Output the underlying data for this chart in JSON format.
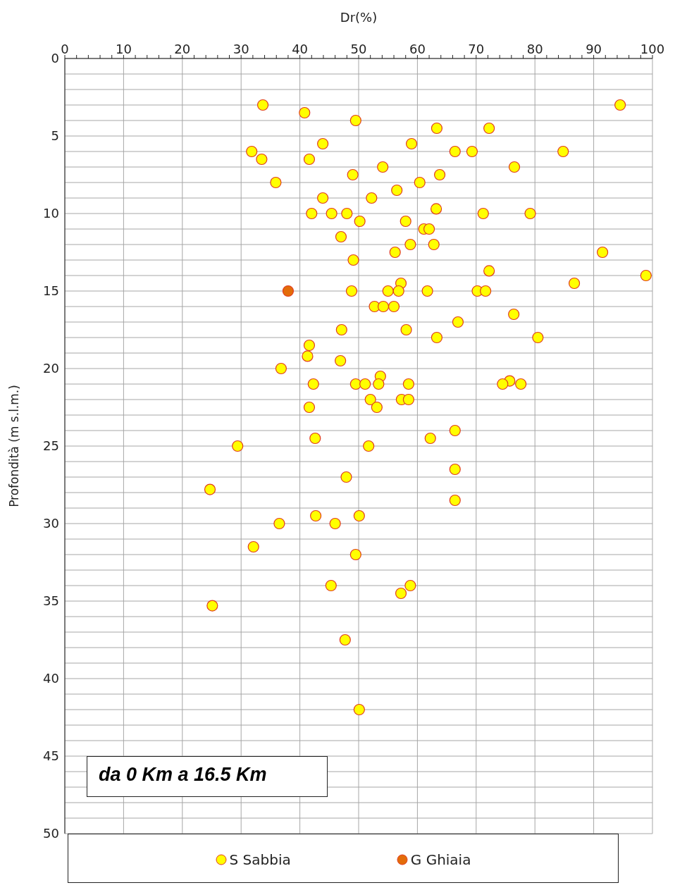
{
  "chart_data": {
    "type": "scatter",
    "xlabel": "Dr(%)",
    "ylabel": "Profondità (m s.l.m.)",
    "xlim": [
      0,
      100
    ],
    "ylim": [
      50,
      0
    ],
    "xticks": [
      0,
      {
        "value": 2,
        "label": null
      },
      {
        "value": 4,
        "label": null
      },
      {
        "value": 6,
        "label": null
      },
      {
        "value": 8,
        "label": null
      },
      10,
      {
        "value": 12,
        "label": null
      },
      {
        "value": 14,
        "label": null
      },
      {
        "value": 16,
        "label": null
      },
      {
        "value": 18,
        "label": null
      },
      20,
      {
        "value": 22,
        "label": null
      },
      {
        "value": 24,
        "label": null
      },
      {
        "value": 26,
        "label": null
      },
      {
        "value": 28,
        "label": null
      },
      30,
      {
        "value": 32,
        "label": null
      },
      {
        "value": 34,
        "label": null
      },
      {
        "value": 36,
        "label": null
      },
      {
        "value": 38,
        "label": null
      },
      40,
      {
        "value": 42,
        "label": null
      },
      {
        "value": 44,
        "label": null
      },
      {
        "value": 46,
        "label": null
      },
      {
        "value": 48,
        "label": null
      },
      50,
      {
        "value": 52,
        "label": null
      },
      {
        "value": 54,
        "label": null
      },
      {
        "value": 56,
        "label": null
      },
      {
        "value": 58,
        "label": null
      },
      60,
      {
        "value": 62,
        "label": null
      },
      {
        "value": 64,
        "label": null
      },
      {
        "value": 66,
        "label": null
      },
      {
        "value": 68,
        "label": null
      },
      70,
      {
        "value": 72,
        "label": null
      },
      {
        "value": 74,
        "label": null
      },
      {
        "value": 76,
        "label": null
      },
      {
        "value": 78,
        "label": null
      },
      80,
      {
        "value": 82,
        "label": null
      },
      {
        "value": 84,
        "label": null
      },
      {
        "value": 86,
        "label": null
      },
      {
        "value": 88,
        "label": null
      },
      90,
      {
        "value": 92,
        "label": null
      },
      {
        "value": 94,
        "label": null
      },
      {
        "value": 96,
        "label": null
      },
      {
        "value": 98,
        "label": null
      },
      100
    ],
    "yticks": [
      0,
      {
        "value": 1,
        "label": null
      },
      {
        "value": 2,
        "label": null
      },
      {
        "value": 3,
        "label": null
      },
      {
        "value": 4,
        "label": null
      },
      5,
      {
        "value": 6,
        "label": null
      },
      {
        "value": 7,
        "label": null
      },
      {
        "value": 8,
        "label": null
      },
      {
        "value": 9,
        "label": null
      },
      10,
      {
        "value": 11,
        "label": null
      },
      {
        "value": 12,
        "label": null
      },
      {
        "value": 13,
        "label": null
      },
      {
        "value": 14,
        "label": null
      },
      15,
      {
        "value": 16,
        "label": null
      },
      {
        "value": 17,
        "label": null
      },
      {
        "value": 18,
        "label": null
      },
      {
        "value": 19,
        "label": null
      },
      20,
      {
        "value": 21,
        "label": null
      },
      {
        "value": 22,
        "label": null
      },
      {
        "value": 23,
        "label": null
      },
      {
        "value": 24,
        "label": null
      },
      25,
      {
        "value": 26,
        "label": null
      },
      {
        "value": 27,
        "label": null
      },
      {
        "value": 28,
        "label": null
      },
      {
        "value": 29,
        "label": null
      },
      30,
      {
        "value": 31,
        "label": null
      },
      {
        "value": 32,
        "label": null
      },
      {
        "value": 33,
        "label": null
      },
      {
        "value": 34,
        "label": null
      },
      35,
      {
        "value": 36,
        "label": null
      },
      {
        "value": 37,
        "label": null
      },
      {
        "value": 38,
        "label": null
      },
      {
        "value": 39,
        "label": null
      },
      40,
      {
        "value": 41,
        "label": null
      },
      {
        "value": 42,
        "label": null
      },
      {
        "value": 43,
        "label": null
      },
      {
        "value": 44,
        "label": null
      },
      45,
      {
        "value": 46,
        "label": null
      },
      {
        "value": 47,
        "label": null
      },
      {
        "value": 48,
        "label": null
      },
      {
        "value": 49,
        "label": null
      },
      50
    ],
    "grid": true,
    "legend": "bottom",
    "marker": "circle",
    "annotations": [
      "da 0 Km a 16.5 Km"
    ],
    "series": [
      {
        "name": "S Sabbia",
        "color": "#ffff00",
        "x": [
          33.7,
          40.8,
          49.5,
          94.5,
          63.3,
          72.2,
          59.0,
          43.9,
          31.8,
          66.4,
          69.3,
          84.8,
          33.5,
          41.6,
          54.1,
          76.5,
          49.0,
          63.8,
          35.9,
          60.4,
          56.5,
          43.9,
          52.2,
          63.2,
          42.0,
          45.4,
          48.0,
          71.2,
          79.2,
          50.2,
          58.0,
          61.1,
          62.0,
          47.0,
          58.8,
          62.8,
          56.2,
          91.5,
          49.1,
          72.2,
          98.9,
          57.2,
          86.7,
          48.8,
          55.0,
          56.8,
          61.7,
          70.2,
          71.6,
          52.7,
          54.2,
          56.0,
          76.4,
          66.9,
          47.1,
          58.1,
          63.3,
          80.5,
          41.6,
          41.3,
          46.9,
          36.8,
          53.7,
          75.7,
          42.3,
          49.5,
          51.1,
          53.4,
          58.5,
          74.5,
          77.6,
          52.0,
          57.3,
          58.5,
          41.6,
          53.1,
          66.4,
          42.6,
          62.2,
          29.4,
          51.7,
          66.4,
          47.9,
          24.7,
          66.4,
          42.7,
          50.1,
          36.5,
          46.0,
          32.1,
          49.5,
          45.3,
          58.8,
          57.2,
          25.1,
          47.7,
          50.1
        ],
        "values": [
          3.0,
          3.5,
          4.0,
          3.0,
          4.5,
          4.5,
          5.5,
          5.5,
          6.0,
          6.0,
          6.0,
          6.0,
          6.5,
          6.5,
          7.0,
          7.0,
          7.5,
          7.5,
          8.0,
          8.0,
          8.5,
          9.0,
          9.0,
          9.7,
          10.0,
          10.0,
          10.0,
          10.0,
          10.0,
          10.5,
          10.5,
          11.0,
          11.0,
          11.5,
          12.0,
          12.0,
          12.5,
          12.5,
          13.0,
          13.7,
          14.0,
          14.5,
          14.5,
          15.0,
          15.0,
          15.0,
          15.0,
          15.0,
          15.0,
          16.0,
          16.0,
          16.0,
          16.5,
          17.0,
          17.5,
          17.5,
          18.0,
          18.0,
          18.5,
          19.2,
          19.5,
          20.0,
          20.5,
          20.8,
          21.0,
          21.0,
          21.0,
          21.0,
          21.0,
          21.0,
          21.0,
          22.0,
          22.0,
          22.0,
          22.5,
          22.5,
          24.0,
          24.5,
          24.5,
          25.0,
          25.0,
          26.5,
          27.0,
          27.8,
          28.5,
          29.5,
          29.5,
          30.0,
          30.0,
          31.5,
          32.0,
          34.0,
          34.0,
          34.5,
          35.3,
          37.5,
          42.0
        ]
      },
      {
        "name": "G Ghiaia",
        "color": "#e36c09",
        "x": [
          38.0
        ],
        "values": [
          15.0
        ]
      }
    ]
  }
}
